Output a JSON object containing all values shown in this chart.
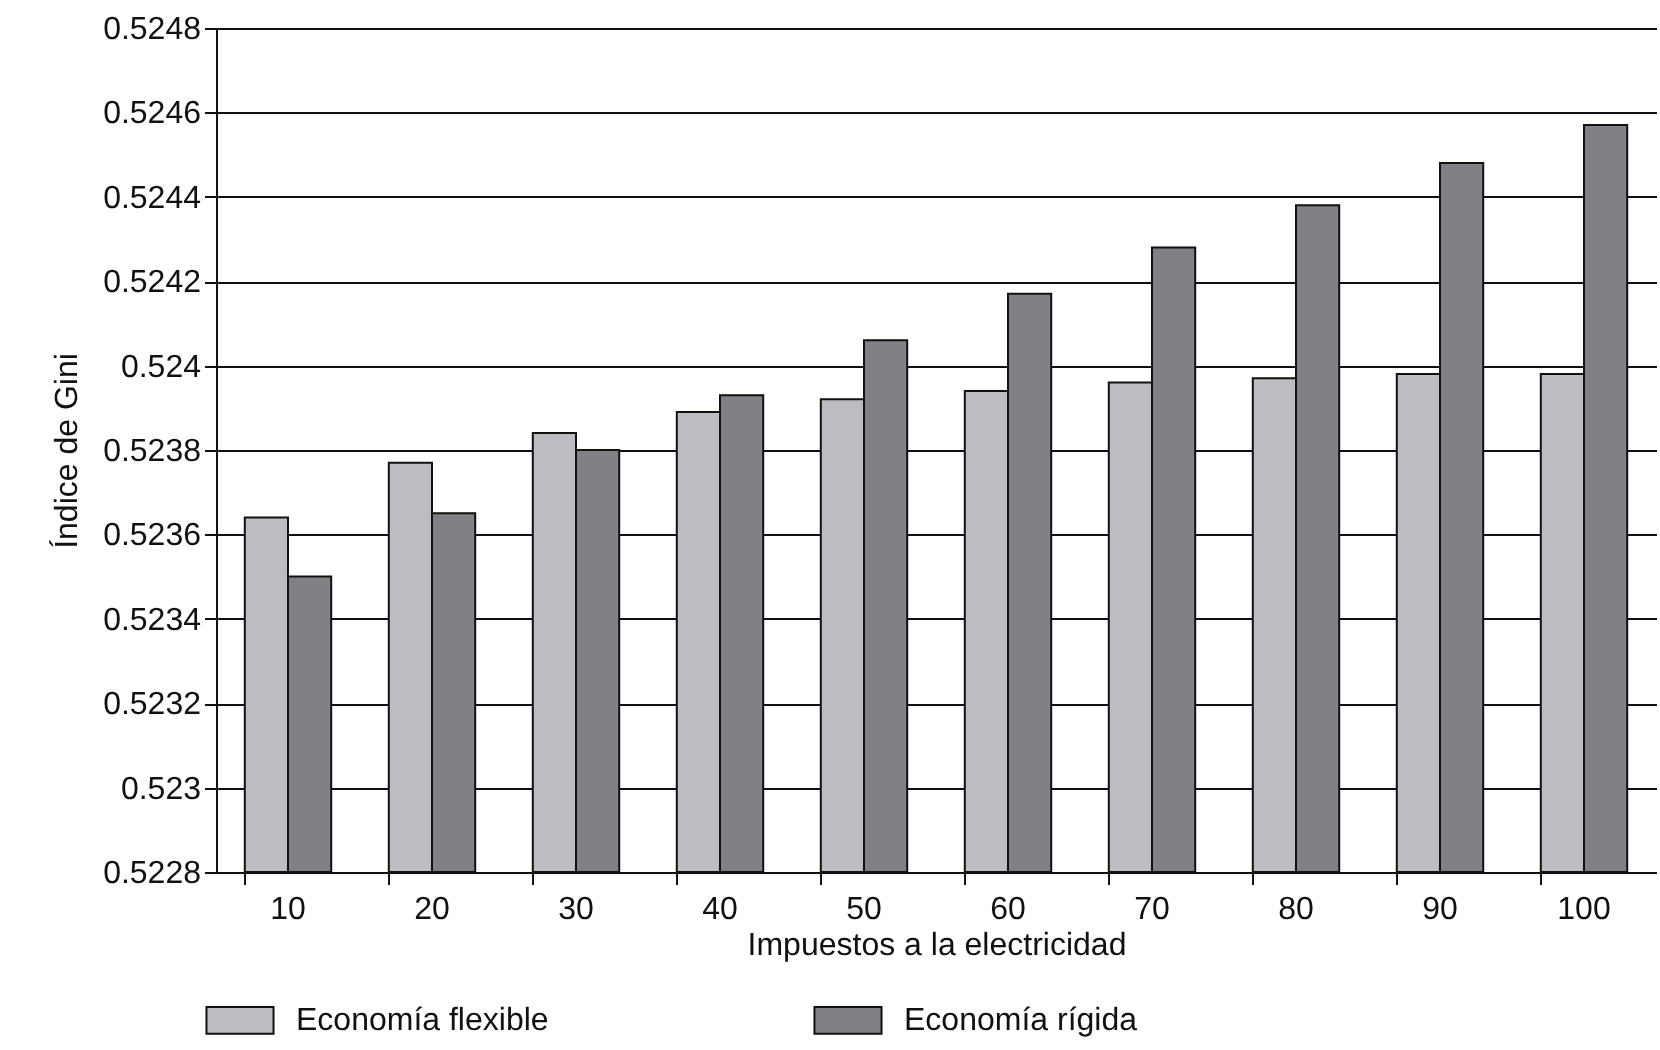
{
  "chart_data": {
    "type": "bar",
    "xlabel": "Impuestos a la electricidad",
    "ylabel": "Índice de Gini",
    "categories": [
      "10",
      "20",
      "30",
      "40",
      "50",
      "60",
      "70",
      "80",
      "90",
      "100"
    ],
    "series": [
      {
        "name": "Economía flexible",
        "color": "#bcbdc0",
        "values": [
          0.52364,
          0.52377,
          0.52384,
          0.52389,
          0.52392,
          0.52394,
          0.52396,
          0.52397,
          0.52398,
          0.52398
        ]
      },
      {
        "name": "Economía rígida",
        "color": "#808085",
        "values": [
          0.5235,
          0.52365,
          0.5238,
          0.52393,
          0.52406,
          0.52417,
          0.52428,
          0.52438,
          0.52448,
          0.52457
        ]
      }
    ],
    "ylim": [
      0.5228,
      0.5248
    ],
    "yticks": [
      0.5228,
      0.523,
      0.5232,
      0.5234,
      0.5236,
      0.5238,
      0.524,
      0.5242,
      0.5244,
      0.5246,
      0.5248
    ],
    "grid": "y",
    "legend": "bottom"
  }
}
